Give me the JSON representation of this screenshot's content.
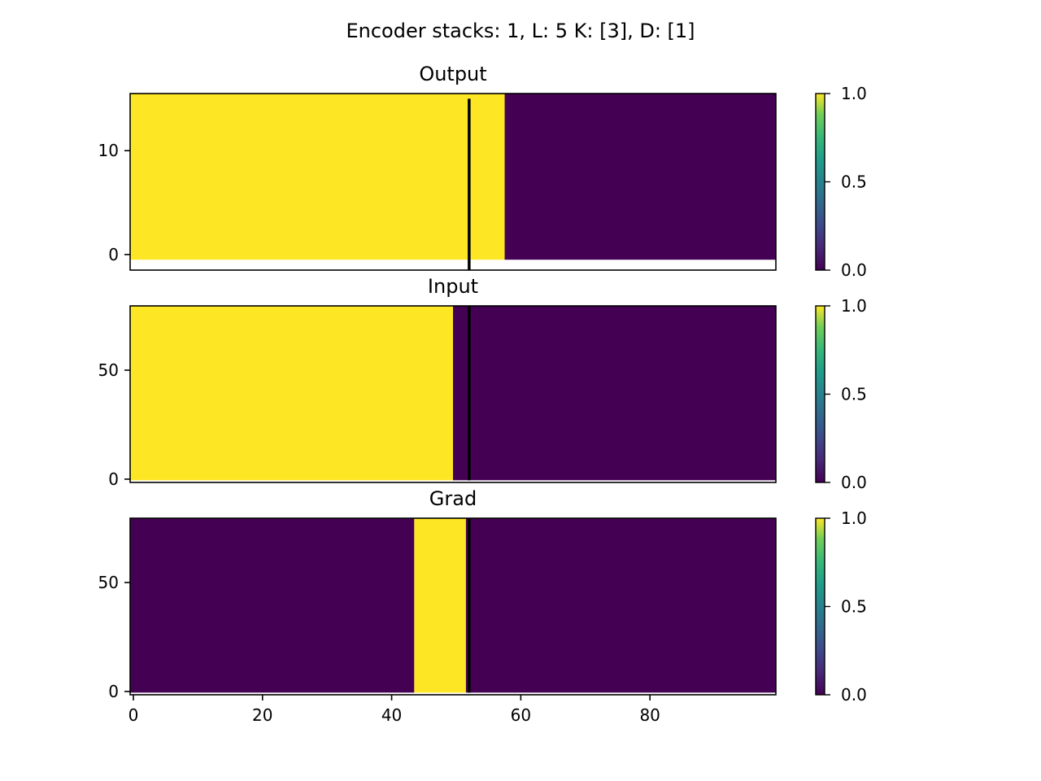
{
  "figure": {
    "suptitle": "Encoder stacks: 1, L: 5 K: [3], D: [1]"
  },
  "colors": {
    "high": "#fde725",
    "low": "#440154",
    "colormap": "viridis",
    "marker_line": "#000000",
    "frame": "#000000",
    "background": "#ffffff"
  },
  "chart_data": [
    {
      "type": "heatmap",
      "title": "Output",
      "xlabel": "",
      "ylabel": "",
      "xlim": [
        -0.5,
        99.5
      ],
      "ylim": [
        -1.5,
        15.5
      ],
      "yticks": [
        0,
        10
      ],
      "xticks_visible": false,
      "regions": [
        {
          "x_from": -0.5,
          "x_to": 57.5,
          "y_from": -0.5,
          "y_to": 15.5,
          "value": 1.0
        },
        {
          "x_from": 57.5,
          "x_to": 99.5,
          "y_from": -0.5,
          "y_to": 15.5,
          "value": 0.0
        }
      ],
      "marker_line": {
        "x": 52,
        "y_from": -1.5,
        "y_to": 15
      }
    },
    {
      "type": "heatmap",
      "title": "Input",
      "xlabel": "",
      "ylabel": "",
      "xlim": [
        -0.5,
        99.5
      ],
      "ylim": [
        -1.5,
        79.5
      ],
      "yticks": [
        0,
        50
      ],
      "xticks_visible": false,
      "regions": [
        {
          "x_from": -0.5,
          "x_to": 49.5,
          "y_from": -0.5,
          "y_to": 79.5,
          "value": 1.0
        },
        {
          "x_from": 49.5,
          "x_to": 99.5,
          "y_from": -0.5,
          "y_to": 79.5,
          "value": 0.0
        }
      ],
      "marker_line": {
        "x": 52,
        "y_from": -0.5,
        "y_to": 79.5
      }
    },
    {
      "type": "heatmap",
      "title": "Grad",
      "xlabel": "",
      "ylabel": "",
      "xlim": [
        -0.5,
        99.5
      ],
      "ylim": [
        -1.5,
        79.5
      ],
      "yticks": [
        0,
        50
      ],
      "xticks": [
        0,
        20,
        40,
        60,
        80
      ],
      "xticks_visible": true,
      "regions": [
        {
          "x_from": -0.5,
          "x_to": 43.5,
          "y_from": -0.5,
          "y_to": 79.5,
          "value": 0.0
        },
        {
          "x_from": 43.5,
          "x_to": 51.5,
          "y_from": -0.5,
          "y_to": 79.5,
          "value": 1.0
        },
        {
          "x_from": 51.5,
          "x_to": 99.5,
          "y_from": -0.5,
          "y_to": 79.5,
          "value": 0.0
        }
      ],
      "marker_line": {
        "x": 52,
        "y_from": -0.5,
        "y_to": 79.5
      }
    }
  ],
  "colorbars": [
    {
      "ticks": [
        0.0,
        0.5,
        1.0
      ],
      "tick_labels": [
        "0.0",
        "0.5",
        "1.0"
      ],
      "range": [
        0.0,
        1.0
      ]
    },
    {
      "ticks": [
        0.0,
        0.5,
        1.0
      ],
      "tick_labels": [
        "0.0",
        "0.5",
        "1.0"
      ],
      "range": [
        0.0,
        1.0
      ]
    },
    {
      "ticks": [
        0.0,
        0.5,
        1.0
      ],
      "tick_labels": [
        "0.0",
        "0.5",
        "1.0"
      ],
      "range": [
        0.0,
        1.0
      ]
    }
  ]
}
